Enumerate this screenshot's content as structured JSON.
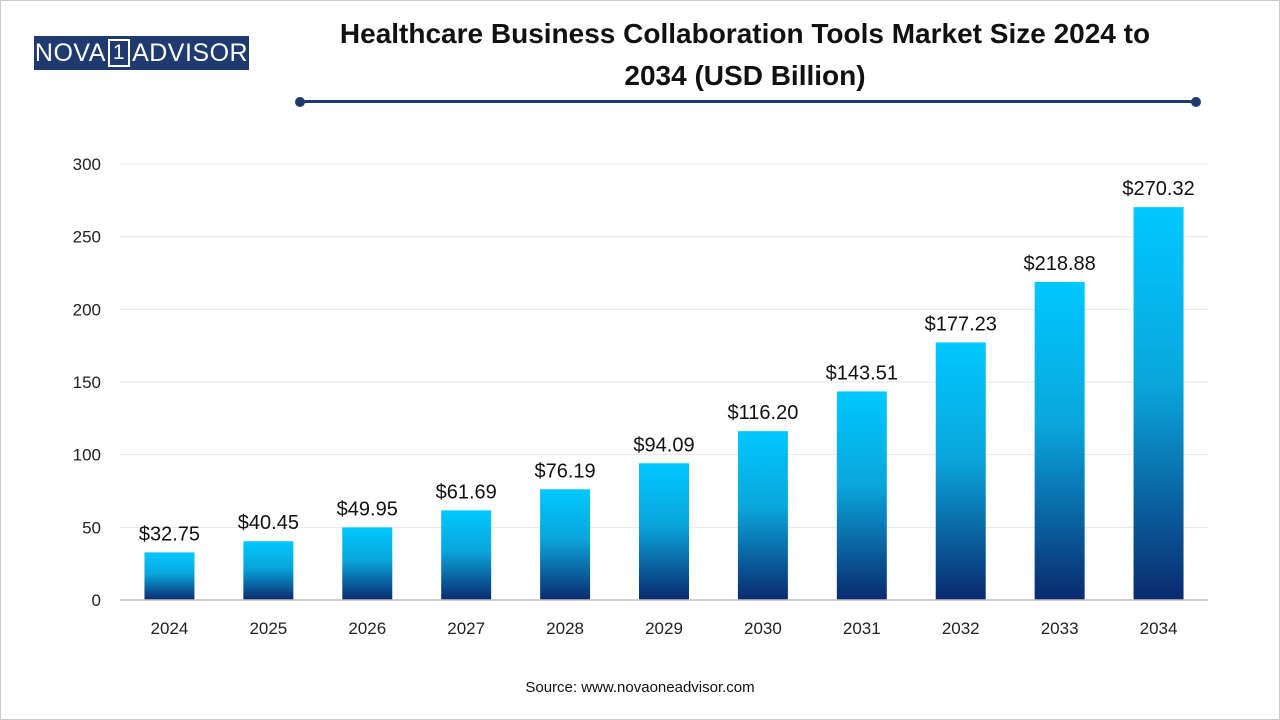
{
  "logo": {
    "left": "NOVA",
    "box": "1",
    "right": "ADVISOR"
  },
  "title_line1": "Healthcare Business Collaboration Tools Market Size 2024 to",
  "title_line2": "2034 (USD Billion)",
  "source": "Source: www.novaoneadvisor.com",
  "colors": {
    "bar_top": "#00c8ff",
    "bar_bottom": "#0a2a6e",
    "accent": "#1f3a6e"
  },
  "chart_data": {
    "type": "bar",
    "title": "Healthcare Business Collaboration Tools Market Size 2024 to 2034 (USD Billion)",
    "categories": [
      "2024",
      "2025",
      "2026",
      "2027",
      "2028",
      "2029",
      "2030",
      "2031",
      "2032",
      "2033",
      "2034"
    ],
    "values": [
      32.75,
      40.45,
      49.95,
      61.69,
      76.19,
      94.09,
      116.2,
      143.51,
      177.23,
      218.88,
      270.32
    ],
    "data_labels": [
      "$32.75",
      "$40.45",
      "$49.95",
      "$61.69",
      "$76.19",
      "$94.09",
      "$116.20",
      "$143.51",
      "$177.23",
      "$218.88",
      "$270.32"
    ],
    "yticks": [
      "0",
      "50",
      "100",
      "150",
      "200",
      "250",
      "300"
    ],
    "ylim": [
      0,
      300
    ],
    "xlabel": "",
    "ylabel": "",
    "grid": true,
    "legend": "none"
  }
}
